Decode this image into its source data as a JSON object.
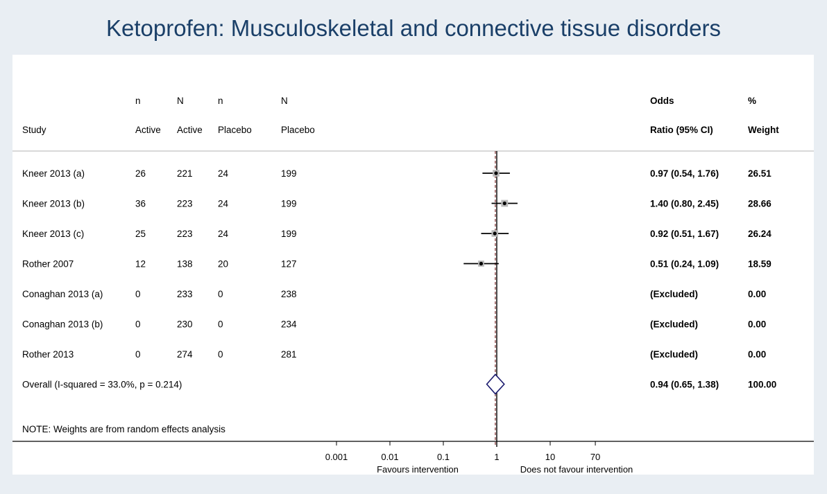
{
  "title": "Ketoprofen: Musculoskeletal and connective tissue disorders",
  "headers": {
    "study": [
      "",
      "Study"
    ],
    "n_active": [
      "n",
      "Active"
    ],
    "N_active": [
      "N",
      "Active"
    ],
    "n_placebo": [
      "n",
      "Placebo"
    ],
    "N_placebo": [
      "N",
      "Placebo"
    ],
    "or": [
      "Odds",
      "Ratio (95% CI)"
    ],
    "weight": [
      "%",
      "Weight"
    ]
  },
  "note": "NOTE: Weights are from random effects analysis",
  "favours_left": "Favours intervention",
  "favours_right": "Does not favour intervention",
  "colors": {
    "title": "#1a3f68",
    "background": "#e9eef3",
    "diamond": "#1a1a6e",
    "ref_line": "#7a2a2a",
    "box": "#b8b8b8"
  },
  "chart_data": {
    "type": "forest",
    "x_scale": "log",
    "xlim": [
      0.001,
      70
    ],
    "xticks": [
      0.001,
      0.01,
      0.1,
      1,
      10,
      70
    ],
    "xtick_labels": [
      "0.001",
      "0.01",
      "0.1",
      "1",
      "10",
      "70"
    ],
    "reference_line": 1,
    "overall_line": 0.94,
    "studies": [
      {
        "study": "Kneer 2013 (a)",
        "n_active": "26",
        "N_active": "221",
        "n_placebo": "24",
        "N_placebo": "199",
        "or": 0.97,
        "lo": 0.54,
        "hi": 1.76,
        "or_label": "0.97 (0.54, 1.76)",
        "weight": "26.51"
      },
      {
        "study": "Kneer 2013 (b)",
        "n_active": "36",
        "N_active": "223",
        "n_placebo": "24",
        "N_placebo": "199",
        "or": 1.4,
        "lo": 0.8,
        "hi": 2.45,
        "or_label": "1.40 (0.80, 2.45)",
        "weight": "28.66"
      },
      {
        "study": "Kneer 2013 (c)",
        "n_active": "25",
        "N_active": "223",
        "n_placebo": "24",
        "N_placebo": "199",
        "or": 0.92,
        "lo": 0.51,
        "hi": 1.67,
        "or_label": "0.92 (0.51, 1.67)",
        "weight": "26.24"
      },
      {
        "study": "Rother 2007",
        "n_active": "12",
        "N_active": "138",
        "n_placebo": "20",
        "N_placebo": "127",
        "or": 0.51,
        "lo": 0.24,
        "hi": 1.09,
        "or_label": "0.51 (0.24, 1.09)",
        "weight": "18.59"
      },
      {
        "study": "Conaghan 2013 (a)",
        "n_active": "0",
        "N_active": "233",
        "n_placebo": "0",
        "N_placebo": "238",
        "or": null,
        "lo": null,
        "hi": null,
        "or_label": "(Excluded)",
        "weight": "0.00"
      },
      {
        "study": "Conaghan 2013 (b)",
        "n_active": "0",
        "N_active": "230",
        "n_placebo": "0",
        "N_placebo": "234",
        "or": null,
        "lo": null,
        "hi": null,
        "or_label": "(Excluded)",
        "weight": "0.00"
      },
      {
        "study": "Rother 2013",
        "n_active": "0",
        "N_active": "274",
        "n_placebo": "0",
        "N_placebo": "281",
        "or": null,
        "lo": null,
        "hi": null,
        "or_label": "(Excluded)",
        "weight": "0.00"
      }
    ],
    "overall": {
      "label": "Overall  (I-squared = 33.0%, p = 0.214)",
      "or": 0.94,
      "lo": 0.65,
      "hi": 1.38,
      "or_label": "0.94 (0.65, 1.38)",
      "weight": "100.00"
    }
  }
}
